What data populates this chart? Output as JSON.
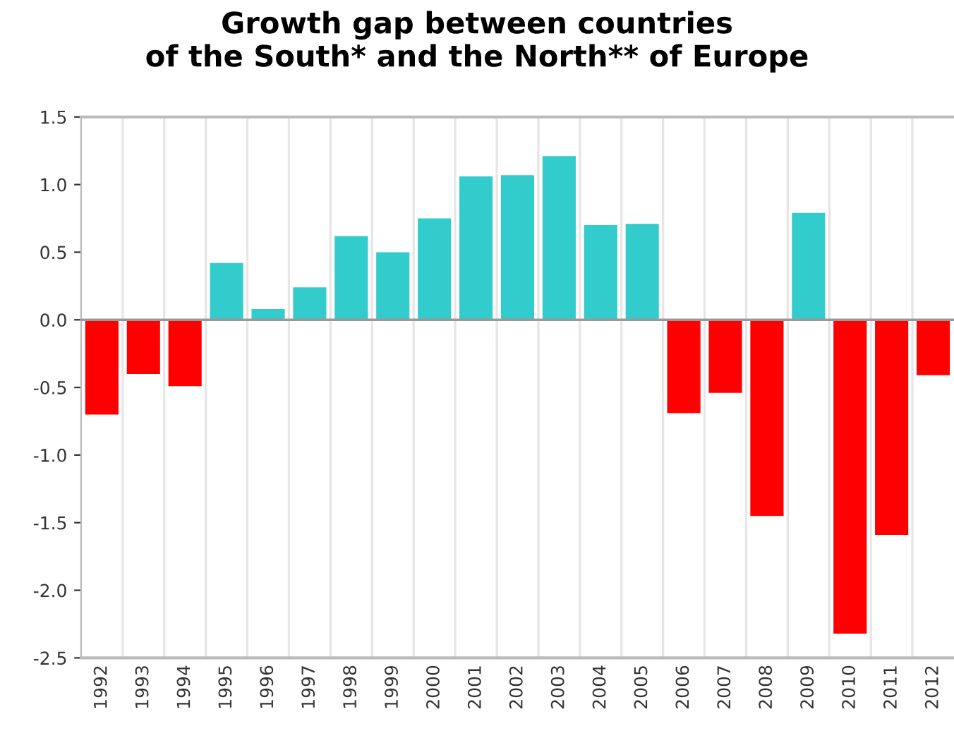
{
  "chart_data": {
    "type": "bar",
    "title": "Growth gap between countries\nof the South* and the North** of Europe",
    "categories": [
      "1992",
      "1993",
      "1994",
      "1995",
      "1996",
      "1997",
      "1998",
      "1999",
      "2000",
      "2001",
      "2002",
      "2003",
      "2004",
      "2005",
      "2006",
      "2007",
      "2008",
      "2009",
      "2010",
      "2011",
      "2012"
    ],
    "values": [
      -0.7,
      -0.4,
      -0.49,
      0.42,
      0.08,
      0.24,
      0.62,
      0.5,
      0.75,
      1.06,
      1.07,
      1.21,
      0.7,
      0.71,
      -0.69,
      -0.54,
      -1.45,
      0.79,
      -2.32,
      -1.59,
      -0.41
    ],
    "colors": [
      "#ff0000",
      "#ff0000",
      "#ff0000",
      "#33cccc",
      "#33cccc",
      "#33cccc",
      "#33cccc",
      "#33cccc",
      "#33cccc",
      "#33cccc",
      "#33cccc",
      "#33cccc",
      "#33cccc",
      "#33cccc",
      "#ff0000",
      "#ff0000",
      "#ff0000",
      "#33cccc",
      "#ff0000",
      "#ff0000",
      "#ff0000"
    ],
    "ylim": [
      -2.5,
      1.5
    ],
    "yticks": [
      {
        "value": 1.5,
        "label": "1.5"
      },
      {
        "value": 1.0,
        "label": "1.0"
      },
      {
        "value": 0.5,
        "label": "0.5"
      },
      {
        "value": 0.0,
        "label": "0.0"
      },
      {
        "value": -0.5,
        "label": "-0.5"
      },
      {
        "value": -1.0,
        "label": "-1.0"
      },
      {
        "value": -1.5,
        "label": "-1.5"
      },
      {
        "value": -2.0,
        "label": "-2.0"
      },
      {
        "value": -2.5,
        "label": "-2.5"
      }
    ],
    "grid": "x"
  }
}
